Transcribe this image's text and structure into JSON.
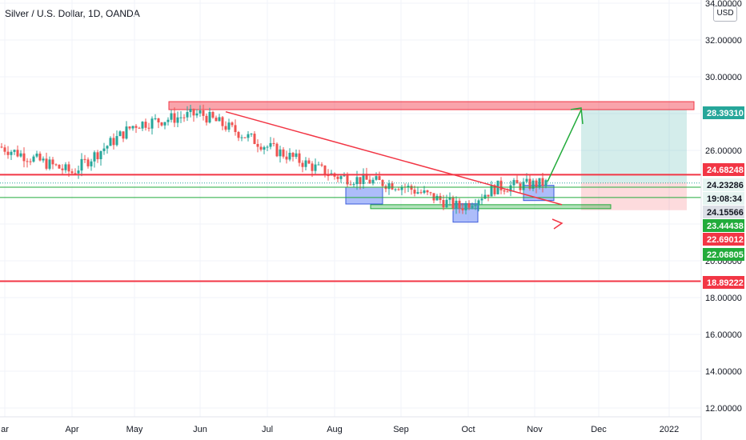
{
  "header": {
    "title": "Silver / U.S. Dollar, 1D, OANDA",
    "currency_button": "USD"
  },
  "colors": {
    "up": "#26a69a",
    "down": "#ef5350",
    "resistance": "#f23645",
    "support": "#22ab3b",
    "zone_blue": "#5b7cf5"
  },
  "chart_data": {
    "type": "candlestick",
    "title": "Silver / U.S. Dollar, 1D, OANDA",
    "ylim": [
      11.9,
      34.2
    ],
    "y_ticks": [
      "34.00000",
      "32.00000",
      "30.00000",
      "28.00000",
      "26.00000",
      "24.00000",
      "22.00000",
      "20.00000",
      "18.00000",
      "16.00000",
      "14.00000",
      "12.00000"
    ],
    "x_ticks": [
      "ar",
      "Apr",
      "May",
      "Jun",
      "Jul",
      "Aug",
      "Sep",
      "Oct",
      "Nov",
      "Dec",
      "2022"
    ],
    "ohlc_anchors": [
      {
        "date": "Mar",
        "close": 26.2
      },
      {
        "date": "Apr",
        "close": 24.8
      },
      {
        "date": "May",
        "close": 27.4
      },
      {
        "date": "Jun",
        "close": 28.0
      },
      {
        "date": "Jul",
        "close": 26.2
      },
      {
        "date": "Aug",
        "close": 24.6
      },
      {
        "date": "Sep",
        "close": 24.1
      },
      {
        "date": "Oct",
        "close": 22.9
      },
      {
        "date": "Oct-mid",
        "close": 24.0
      },
      {
        "date": "Nov",
        "close": 24.2
      }
    ],
    "price_labels": [
      {
        "value": "28.39310",
        "kind": "target"
      },
      {
        "value": "24.68248",
        "kind": "resistance"
      },
      {
        "value": "24.23286",
        "kind": "last"
      },
      {
        "value": "19:08:34",
        "kind": "countdown"
      },
      {
        "value": "24.15566",
        "kind": "price"
      },
      {
        "value": "23.44438",
        "kind": "support"
      },
      {
        "value": "22.69012",
        "kind": "stop"
      },
      {
        "value": "22.06805",
        "kind": "support"
      },
      {
        "value": "18.89222",
        "kind": "resistance"
      }
    ],
    "levels": [
      {
        "name": "resistance-28.4",
        "price": 28.4
      },
      {
        "name": "resistance-24.68",
        "price": 24.68
      },
      {
        "name": "support-24.0",
        "price": 24.0
      },
      {
        "name": "support-23.44",
        "price": 23.44
      },
      {
        "name": "resistance-18.89",
        "price": 18.89
      }
    ]
  }
}
